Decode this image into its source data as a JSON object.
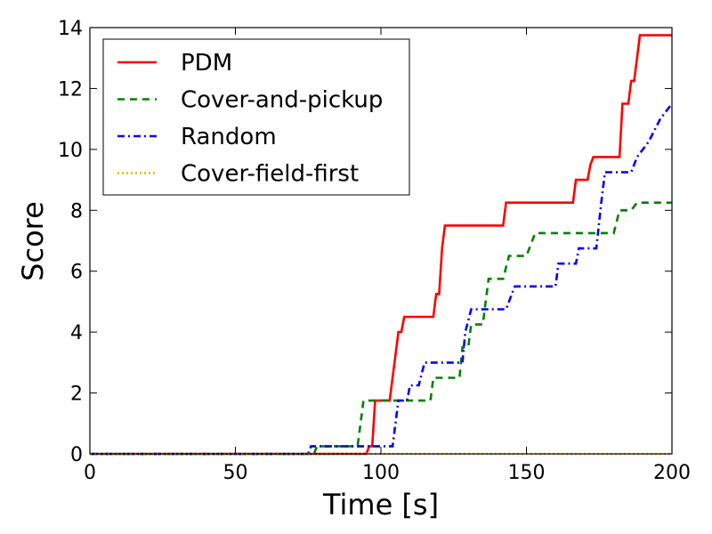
{
  "chart_data": {
    "type": "line",
    "title": "",
    "xlabel": "Time [s]",
    "ylabel": "Score",
    "xlim": [
      0,
      200
    ],
    "ylim": [
      0,
      14
    ],
    "xticks": [
      0,
      50,
      100,
      150,
      200
    ],
    "yticks": [
      0,
      2,
      4,
      6,
      8,
      10,
      12,
      14
    ],
    "grid": false,
    "legend_position": "top-left",
    "series": [
      {
        "name": "PDM",
        "color": "#ff0000",
        "style": "solid",
        "points": [
          [
            0,
            0
          ],
          [
            95,
            0
          ],
          [
            96,
            0.25
          ],
          [
            97,
            0.25
          ],
          [
            98,
            1.75
          ],
          [
            103,
            1.75
          ],
          [
            105,
            3.25
          ],
          [
            106,
            4
          ],
          [
            107,
            4
          ],
          [
            108,
            4.5
          ],
          [
            118,
            4.5
          ],
          [
            119,
            5.25
          ],
          [
            120,
            5.25
          ],
          [
            121,
            6.75
          ],
          [
            122,
            7.5
          ],
          [
            142,
            7.5
          ],
          [
            143,
            8.25
          ],
          [
            166,
            8.25
          ],
          [
            167,
            9
          ],
          [
            171,
            9
          ],
          [
            172,
            9.5
          ],
          [
            173,
            9.75
          ],
          [
            182,
            9.75
          ],
          [
            183,
            11.5
          ],
          [
            185,
            11.5
          ],
          [
            186,
            12.25
          ],
          [
            187,
            12.25
          ],
          [
            188,
            13
          ],
          [
            189,
            13.75
          ],
          [
            200,
            13.75
          ]
        ]
      },
      {
        "name": "Cover-and-pickup",
        "color": "#008000",
        "style": "dashed",
        "points": [
          [
            0,
            0
          ],
          [
            77,
            0
          ],
          [
            78,
            0.25
          ],
          [
            92,
            0.25
          ],
          [
            94,
            1.75
          ],
          [
            117,
            1.75
          ],
          [
            118,
            2.5
          ],
          [
            127,
            2.5
          ],
          [
            128,
            3.5
          ],
          [
            130,
            3.5
          ],
          [
            131,
            4.25
          ],
          [
            135,
            4.25
          ],
          [
            136,
            5
          ],
          [
            137,
            5.75
          ],
          [
            142,
            5.75
          ],
          [
            144,
            6.5
          ],
          [
            150,
            6.5
          ],
          [
            153,
            7.25
          ],
          [
            180,
            7.25
          ],
          [
            182,
            8
          ],
          [
            186,
            8
          ],
          [
            188,
            8.25
          ],
          [
            200,
            8.25
          ]
        ]
      },
      {
        "name": "Random",
        "color": "#0000ff",
        "style": "dashdot",
        "points": [
          [
            0,
            0
          ],
          [
            75,
            0
          ],
          [
            76,
            0.25
          ],
          [
            104,
            0.25
          ],
          [
            106,
            1.75
          ],
          [
            109,
            1.75
          ],
          [
            110,
            2.25
          ],
          [
            113,
            2.25
          ],
          [
            115,
            3
          ],
          [
            128,
            3
          ],
          [
            129,
            4
          ],
          [
            131,
            4.75
          ],
          [
            143,
            4.75
          ],
          [
            146,
            5.5
          ],
          [
            160,
            5.5
          ],
          [
            161,
            6.25
          ],
          [
            167,
            6.25
          ],
          [
            168,
            6.75
          ],
          [
            174,
            6.75
          ],
          [
            176,
            8.5
          ],
          [
            177,
            9.25
          ],
          [
            186,
            9.25
          ],
          [
            188,
            9.75
          ],
          [
            190,
            10
          ],
          [
            192,
            10.25
          ],
          [
            196,
            11
          ],
          [
            200,
            11.5
          ]
        ]
      },
      {
        "name": "Cover-field-first",
        "color": "#e6b800",
        "style": "dotted",
        "points": [
          [
            0,
            0
          ],
          [
            200,
            0
          ]
        ]
      }
    ]
  }
}
